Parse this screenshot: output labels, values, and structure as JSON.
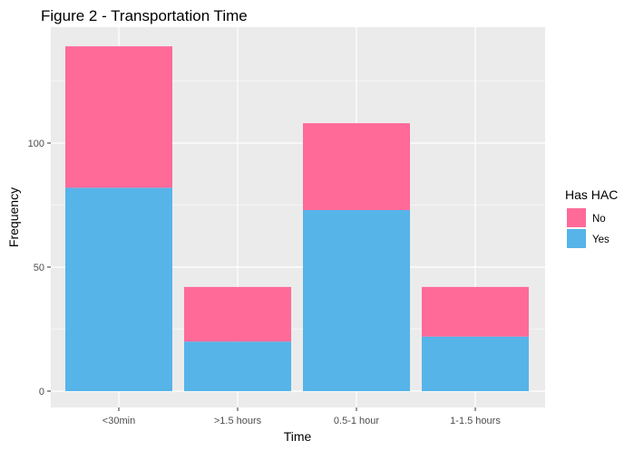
{
  "chart_data": {
    "type": "bar",
    "stacked": true,
    "title": "Figure 2 - Transportation Time",
    "xlabel": "Time",
    "ylabel": "Frequency",
    "categories": [
      "<30min",
      ">1.5 hours",
      "0.5-1 hour",
      "1-1.5 hours"
    ],
    "series": [
      {
        "name": "Yes",
        "values": [
          82,
          20,
          73,
          22
        ],
        "color": "#56B4E9"
      },
      {
        "name": "No",
        "values": [
          57,
          22,
          35,
          20
        ],
        "color": "#FF6A99"
      }
    ],
    "legend": {
      "title": "Has HAC",
      "order": [
        "No",
        "Yes"
      ],
      "position": "right"
    },
    "ylim": [
      0,
      147
    ],
    "yticks": [
      0,
      50,
      100
    ],
    "yticks_minor": [
      25,
      75,
      125
    ],
    "grid": true,
    "panel_background": "#EBEBEB",
    "gridline_color": "#FFFFFF"
  }
}
